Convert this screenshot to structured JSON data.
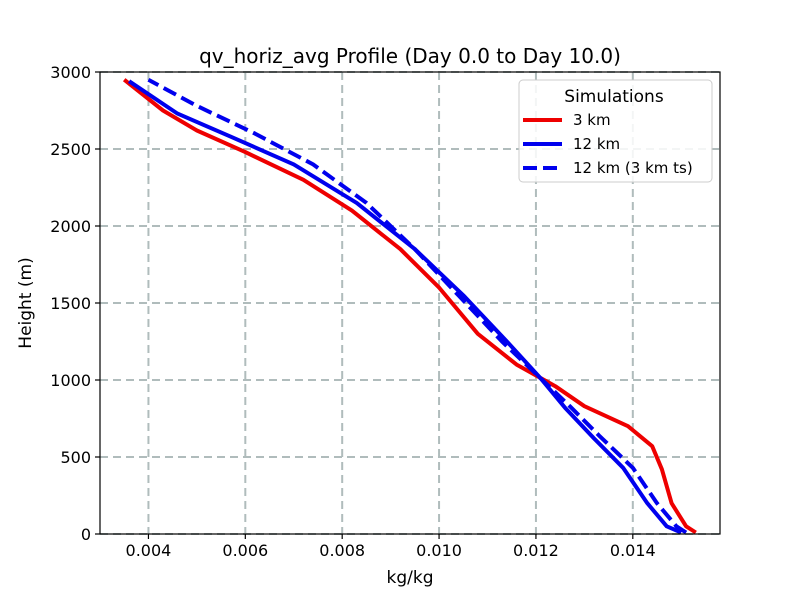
{
  "chart_data": {
    "type": "line",
    "title": "qv_horiz_avg Profile (Day 0.0 to Day 10.0)",
    "xlabel": "kg/kg",
    "ylabel": "Height (m)",
    "xlim": [
      0.003,
      0.0158
    ],
    "ylim": [
      0,
      3000
    ],
    "xticks": [
      0.004,
      0.006,
      0.008,
      0.01,
      0.012,
      0.014
    ],
    "xtick_labels": [
      "0.004",
      "0.006",
      "0.008",
      "0.010",
      "0.012",
      "0.014"
    ],
    "yticks": [
      0,
      500,
      1000,
      1500,
      2000,
      2500,
      3000
    ],
    "ytick_labels": [
      "0",
      "500",
      "1000",
      "1500",
      "2000",
      "2500",
      "3000"
    ],
    "grid": true,
    "legend": {
      "title": "Simulations",
      "placement": "top-right"
    },
    "series": [
      {
        "name": "3 km",
        "color": "#ee0000",
        "style": "solid",
        "points": [
          [
            0.0153,
            10
          ],
          [
            0.0151,
            50
          ],
          [
            0.0148,
            200
          ],
          [
            0.0146,
            420
          ],
          [
            0.0144,
            570
          ],
          [
            0.0139,
            700
          ],
          [
            0.013,
            830
          ],
          [
            0.0124,
            960
          ],
          [
            0.0116,
            1100
          ],
          [
            0.0108,
            1300
          ],
          [
            0.01,
            1600
          ],
          [
            0.0092,
            1850
          ],
          [
            0.0082,
            2100
          ],
          [
            0.0072,
            2300
          ],
          [
            0.006,
            2480
          ],
          [
            0.005,
            2620
          ],
          [
            0.0043,
            2750
          ],
          [
            0.0035,
            2950
          ]
        ]
      },
      {
        "name": "12 km",
        "color": "#0000ee",
        "style": "solid",
        "points": [
          [
            0.015,
            10
          ],
          [
            0.0147,
            50
          ],
          [
            0.0143,
            200
          ],
          [
            0.0138,
            430
          ],
          [
            0.0132,
            620
          ],
          [
            0.0126,
            820
          ],
          [
            0.0121,
            1010
          ],
          [
            0.0114,
            1250
          ],
          [
            0.0105,
            1550
          ],
          [
            0.0095,
            1850
          ],
          [
            0.0083,
            2150
          ],
          [
            0.007,
            2400
          ],
          [
            0.0057,
            2580
          ],
          [
            0.0046,
            2730
          ],
          [
            0.0036,
            2940
          ]
        ]
      },
      {
        "name": "12 km (3 km ts)",
        "color": "#0000ee",
        "style": "dashed",
        "points": [
          [
            0.0151,
            10
          ],
          [
            0.0149,
            50
          ],
          [
            0.0145,
            200
          ],
          [
            0.014,
            430
          ],
          [
            0.0133,
            640
          ],
          [
            0.0127,
            830
          ],
          [
            0.0121,
            1010
          ],
          [
            0.0113,
            1250
          ],
          [
            0.0104,
            1550
          ],
          [
            0.0095,
            1850
          ],
          [
            0.0085,
            2150
          ],
          [
            0.0074,
            2400
          ],
          [
            0.0062,
            2600
          ],
          [
            0.005,
            2780
          ],
          [
            0.004,
            2950
          ]
        ]
      }
    ]
  }
}
